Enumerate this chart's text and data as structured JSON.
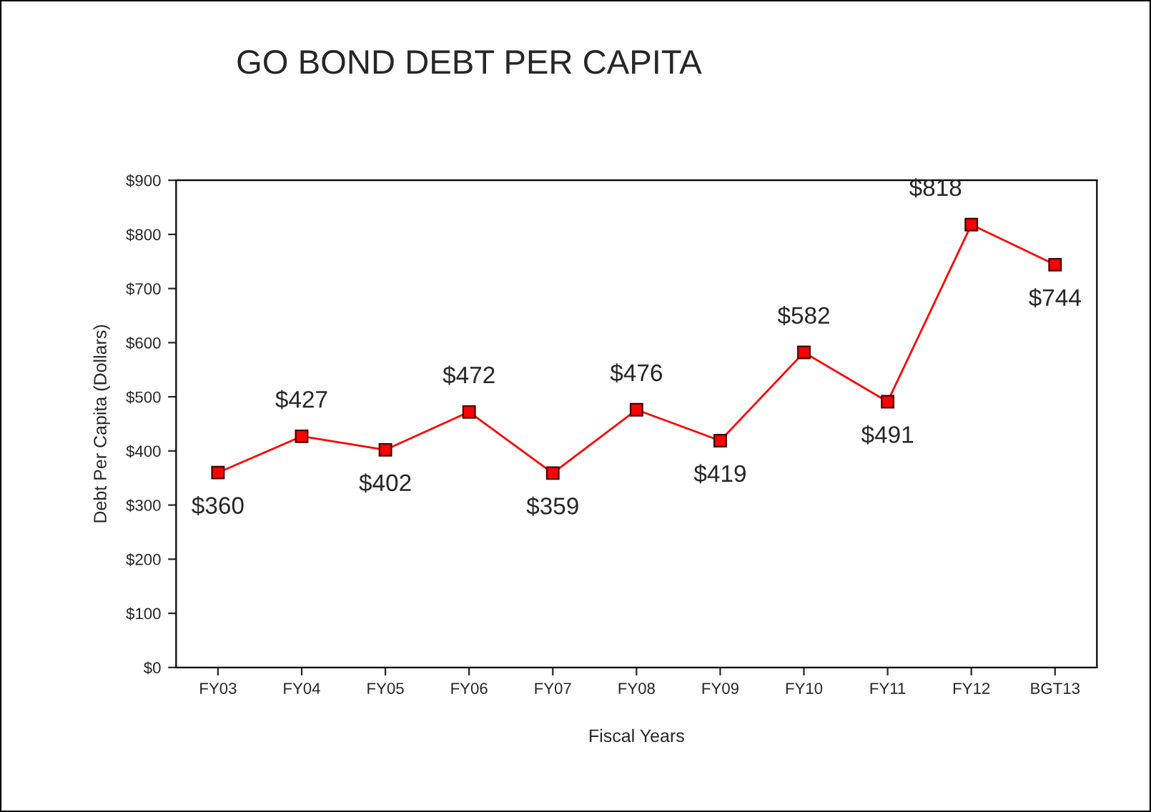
{
  "chart_data": {
    "type": "line",
    "title": "GO BOND DEBT PER CAPITA",
    "xlabel": "Fiscal Years",
    "ylabel": "Debt Per Capita (Dollars)",
    "categories": [
      "FY03",
      "FY04",
      "FY05",
      "FY06",
      "FY07",
      "FY08",
      "FY09",
      "FY10",
      "FY11",
      "FY12",
      "BGT13"
    ],
    "series": [
      {
        "color": "#ff0000",
        "values": [
          360,
          427,
          402,
          472,
          359,
          476,
          419,
          582,
          491,
          818,
          744
        ],
        "value_labels": [
          "$360",
          "$427",
          "$402",
          "$472",
          "$359",
          "$476",
          "$419",
          "$582",
          "$491",
          "$818",
          "$744"
        ]
      }
    ],
    "ylim": [
      0,
      900
    ],
    "yticks": [
      {
        "value": 0,
        "label": "$0"
      },
      {
        "value": 100,
        "label": "$100"
      },
      {
        "value": 200,
        "label": "$200"
      },
      {
        "value": 300,
        "label": "$300"
      },
      {
        "value": 400,
        "label": "$400"
      },
      {
        "value": 500,
        "label": "$500"
      },
      {
        "value": 600,
        "label": "$600"
      },
      {
        "value": 700,
        "label": "$700"
      },
      {
        "value": 800,
        "label": "$800"
      },
      {
        "value": 900,
        "label": "$900"
      }
    ],
    "marker": "square",
    "line_style": "solid",
    "grid": false,
    "legend": false
  }
}
